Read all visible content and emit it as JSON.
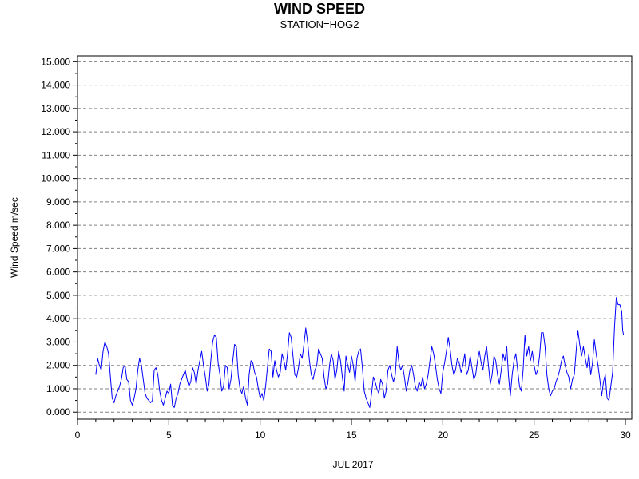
{
  "chart_data": {
    "type": "line",
    "title": "WIND SPEED",
    "subtitle": "STATION=HOG2",
    "xlabel": "JUL 2017",
    "ylabel": "Wind Speed m/sec",
    "xlim": [
      0,
      30.35
    ],
    "ylim": [
      -0.3,
      15.25
    ],
    "xticks": [
      0,
      5,
      10,
      15,
      20,
      25,
      30
    ],
    "yticks": [
      0,
      1,
      2,
      3,
      4,
      5,
      6,
      7,
      8,
      9,
      10,
      11,
      12,
      13,
      14,
      15
    ],
    "ytick_labels": [
      "0.000",
      "1.000",
      "2.000",
      "3.000",
      "4.000",
      "5.000",
      "6.000",
      "7.000",
      "8.000",
      "9.000",
      "10.000",
      "11.000",
      "12.000",
      "13.000",
      "14.000",
      "15.000"
    ],
    "grid": "horizontal dashed at each y tick",
    "line_color": "#0000ff",
    "series": [
      {
        "points": [
          [
            1.0,
            1.6
          ],
          [
            1.1,
            2.3
          ],
          [
            1.2,
            2.0
          ],
          [
            1.3,
            1.8
          ],
          [
            1.4,
            2.6
          ],
          [
            1.5,
            3.0
          ],
          [
            1.6,
            2.8
          ],
          [
            1.7,
            2.5
          ],
          [
            1.8,
            1.5
          ],
          [
            1.9,
            0.6
          ],
          [
            2.0,
            0.4
          ],
          [
            2.1,
            0.7
          ],
          [
            2.2,
            0.9
          ],
          [
            2.3,
            1.1
          ],
          [
            2.4,
            1.4
          ],
          [
            2.5,
            1.9
          ],
          [
            2.6,
            2.0
          ],
          [
            2.7,
            1.4
          ],
          [
            2.8,
            1.3
          ],
          [
            2.9,
            0.5
          ],
          [
            3.0,
            0.3
          ],
          [
            3.1,
            0.6
          ],
          [
            3.2,
            1.0
          ],
          [
            3.3,
            1.8
          ],
          [
            3.4,
            2.3
          ],
          [
            3.5,
            2.0
          ],
          [
            3.6,
            1.4
          ],
          [
            3.7,
            0.8
          ],
          [
            3.8,
            0.6
          ],
          [
            3.9,
            0.5
          ],
          [
            4.0,
            0.4
          ],
          [
            4.1,
            0.5
          ],
          [
            4.2,
            1.8
          ],
          [
            4.3,
            1.9
          ],
          [
            4.4,
            1.6
          ],
          [
            4.5,
            0.9
          ],
          [
            4.6,
            0.5
          ],
          [
            4.7,
            0.3
          ],
          [
            4.8,
            0.6
          ],
          [
            4.9,
            0.9
          ],
          [
            5.0,
            0.8
          ],
          [
            5.1,
            1.2
          ],
          [
            5.2,
            0.3
          ],
          [
            5.3,
            0.2
          ],
          [
            5.4,
            0.6
          ],
          [
            5.5,
            0.8
          ],
          [
            5.6,
            1.2
          ],
          [
            5.7,
            1.4
          ],
          [
            5.8,
            1.6
          ],
          [
            5.9,
            1.8
          ],
          [
            6.0,
            1.4
          ],
          [
            6.1,
            1.1
          ],
          [
            6.2,
            1.3
          ],
          [
            6.3,
            1.9
          ],
          [
            6.4,
            1.7
          ],
          [
            6.5,
            1.2
          ],
          [
            6.6,
            1.8
          ],
          [
            6.7,
            2.2
          ],
          [
            6.8,
            2.6
          ],
          [
            6.9,
            2.0
          ],
          [
            7.0,
            1.5
          ],
          [
            7.1,
            0.9
          ],
          [
            7.2,
            1.2
          ],
          [
            7.3,
            2.2
          ],
          [
            7.4,
            3.0
          ],
          [
            7.5,
            3.3
          ],
          [
            7.6,
            3.2
          ],
          [
            7.7,
            2.1
          ],
          [
            7.8,
            1.6
          ],
          [
            7.9,
            0.9
          ],
          [
            8.0,
            1.1
          ],
          [
            8.1,
            2.0
          ],
          [
            8.2,
            1.9
          ],
          [
            8.3,
            1.0
          ],
          [
            8.4,
            1.4
          ],
          [
            8.5,
            2.2
          ],
          [
            8.6,
            2.9
          ],
          [
            8.7,
            2.8
          ],
          [
            8.8,
            1.6
          ],
          [
            8.9,
            1.0
          ],
          [
            9.0,
            0.8
          ],
          [
            9.1,
            1.1
          ],
          [
            9.2,
            0.6
          ],
          [
            9.3,
            0.3
          ],
          [
            9.4,
            1.6
          ],
          [
            9.5,
            2.2
          ],
          [
            9.6,
            2.1
          ],
          [
            9.7,
            1.7
          ],
          [
            9.8,
            1.5
          ],
          [
            9.9,
            1.0
          ],
          [
            10.0,
            0.6
          ],
          [
            10.1,
            0.8
          ],
          [
            10.2,
            0.5
          ],
          [
            10.3,
            1.1
          ],
          [
            10.4,
            1.9
          ],
          [
            10.5,
            2.7
          ],
          [
            10.6,
            2.6
          ],
          [
            10.7,
            1.5
          ],
          [
            10.8,
            2.2
          ],
          [
            10.9,
            1.8
          ],
          [
            11.0,
            1.5
          ],
          [
            11.1,
            1.7
          ],
          [
            11.2,
            2.5
          ],
          [
            11.3,
            2.2
          ],
          [
            11.4,
            1.8
          ],
          [
            11.5,
            2.5
          ],
          [
            11.6,
            3.4
          ],
          [
            11.7,
            3.2
          ],
          [
            11.8,
            2.4
          ],
          [
            11.9,
            1.6
          ],
          [
            12.0,
            1.5
          ],
          [
            12.1,
            1.9
          ],
          [
            12.2,
            2.5
          ],
          [
            12.3,
            2.3
          ],
          [
            12.4,
            2.9
          ],
          [
            12.5,
            3.6
          ],
          [
            12.6,
            3.0
          ],
          [
            12.7,
            2.2
          ],
          [
            12.8,
            1.6
          ],
          [
            12.9,
            1.4
          ],
          [
            13.0,
            1.8
          ],
          [
            13.1,
            2.0
          ],
          [
            13.2,
            2.7
          ],
          [
            13.3,
            2.5
          ],
          [
            13.4,
            2.3
          ],
          [
            13.5,
            1.5
          ],
          [
            13.6,
            1.0
          ],
          [
            13.7,
            1.2
          ],
          [
            13.8,
            2.0
          ],
          [
            13.9,
            2.5
          ],
          [
            14.0,
            2.2
          ],
          [
            14.1,
            1.4
          ],
          [
            14.2,
            1.8
          ],
          [
            14.3,
            2.6
          ],
          [
            14.4,
            2.2
          ],
          [
            14.5,
            1.5
          ],
          [
            14.6,
            0.9
          ],
          [
            14.7,
            2.4
          ],
          [
            14.8,
            2.0
          ],
          [
            14.9,
            1.7
          ],
          [
            15.0,
            2.4
          ],
          [
            15.1,
            2.0
          ],
          [
            15.2,
            1.3
          ],
          [
            15.3,
            2.3
          ],
          [
            15.4,
            2.6
          ],
          [
            15.5,
            2.7
          ],
          [
            15.6,
            1.9
          ],
          [
            15.7,
            0.9
          ],
          [
            15.8,
            0.6
          ],
          [
            15.9,
            0.4
          ],
          [
            16.0,
            0.2
          ],
          [
            16.1,
            0.8
          ],
          [
            16.2,
            1.5
          ],
          [
            16.3,
            1.3
          ],
          [
            16.4,
            1.0
          ],
          [
            16.5,
            0.8
          ],
          [
            16.6,
            1.4
          ],
          [
            16.7,
            1.2
          ],
          [
            16.8,
            0.6
          ],
          [
            16.9,
            0.9
          ],
          [
            17.0,
            1.8
          ],
          [
            17.1,
            2.0
          ],
          [
            17.2,
            1.6
          ],
          [
            17.3,
            1.3
          ],
          [
            17.4,
            1.6
          ],
          [
            17.5,
            2.8
          ],
          [
            17.6,
            2.1
          ],
          [
            17.7,
            1.8
          ],
          [
            17.8,
            2.0
          ],
          [
            17.9,
            1.5
          ],
          [
            18.0,
            0.9
          ],
          [
            18.1,
            1.3
          ],
          [
            18.2,
            1.8
          ],
          [
            18.3,
            2.0
          ],
          [
            18.4,
            1.6
          ],
          [
            18.5,
            1.1
          ],
          [
            18.6,
            0.9
          ],
          [
            18.7,
            1.3
          ],
          [
            18.8,
            1.1
          ],
          [
            18.9,
            1.5
          ],
          [
            19.0,
            1.0
          ],
          [
            19.1,
            1.2
          ],
          [
            19.2,
            1.6
          ],
          [
            19.3,
            2.2
          ],
          [
            19.4,
            2.8
          ],
          [
            19.5,
            2.5
          ],
          [
            19.6,
            2.0
          ],
          [
            19.7,
            1.4
          ],
          [
            19.8,
            1.0
          ],
          [
            19.9,
            0.8
          ],
          [
            20.0,
            1.7
          ],
          [
            20.1,
            2.1
          ],
          [
            20.2,
            2.6
          ],
          [
            20.3,
            3.2
          ],
          [
            20.4,
            2.7
          ],
          [
            20.5,
            2.0
          ],
          [
            20.6,
            1.6
          ],
          [
            20.7,
            1.8
          ],
          [
            20.8,
            2.3
          ],
          [
            20.9,
            2.1
          ],
          [
            21.0,
            1.7
          ],
          [
            21.1,
            2.0
          ],
          [
            21.2,
            2.5
          ],
          [
            21.3,
            1.6
          ],
          [
            21.4,
            1.8
          ],
          [
            21.5,
            2.4
          ],
          [
            21.6,
            1.9
          ],
          [
            21.7,
            1.4
          ],
          [
            21.8,
            1.6
          ],
          [
            21.9,
            2.2
          ],
          [
            22.0,
            2.6
          ],
          [
            22.1,
            2.1
          ],
          [
            22.2,
            1.8
          ],
          [
            22.3,
            2.4
          ],
          [
            22.4,
            2.8
          ],
          [
            22.5,
            2.0
          ],
          [
            22.6,
            1.2
          ],
          [
            22.7,
            1.6
          ],
          [
            22.8,
            2.4
          ],
          [
            22.9,
            2.2
          ],
          [
            23.0,
            1.6
          ],
          [
            23.1,
            1.2
          ],
          [
            23.2,
            1.8
          ],
          [
            23.3,
            2.5
          ],
          [
            23.4,
            2.2
          ],
          [
            23.5,
            2.8
          ],
          [
            23.6,
            1.5
          ],
          [
            23.7,
            0.7
          ],
          [
            23.8,
            1.6
          ],
          [
            23.9,
            2.2
          ],
          [
            24.0,
            2.5
          ],
          [
            24.1,
            1.8
          ],
          [
            24.2,
            1.1
          ],
          [
            24.3,
            0.9
          ],
          [
            24.4,
            1.8
          ],
          [
            24.5,
            3.3
          ],
          [
            24.6,
            2.4
          ],
          [
            24.7,
            2.8
          ],
          [
            24.8,
            2.2
          ],
          [
            24.9,
            2.6
          ],
          [
            25.0,
            2.0
          ],
          [
            25.1,
            1.6
          ],
          [
            25.2,
            1.8
          ],
          [
            25.3,
            2.4
          ],
          [
            25.4,
            3.4
          ],
          [
            25.5,
            3.4
          ],
          [
            25.6,
            2.8
          ],
          [
            25.7,
            1.6
          ],
          [
            25.8,
            1.0
          ],
          [
            25.9,
            0.7
          ],
          [
            26.0,
            0.9
          ],
          [
            26.1,
            1.0
          ],
          [
            26.2,
            1.3
          ],
          [
            26.3,
            1.5
          ],
          [
            26.4,
            1.8
          ],
          [
            26.5,
            2.2
          ],
          [
            26.6,
            2.4
          ],
          [
            26.7,
            2.0
          ],
          [
            26.8,
            1.7
          ],
          [
            26.9,
            1.5
          ],
          [
            27.0,
            1.0
          ],
          [
            27.1,
            1.4
          ],
          [
            27.2,
            1.6
          ],
          [
            27.3,
            2.6
          ],
          [
            27.4,
            3.5
          ],
          [
            27.5,
            2.9
          ],
          [
            27.6,
            2.4
          ],
          [
            27.7,
            2.8
          ],
          [
            27.8,
            2.3
          ],
          [
            27.9,
            1.9
          ],
          [
            28.0,
            2.5
          ],
          [
            28.1,
            1.6
          ],
          [
            28.2,
            2.1
          ],
          [
            28.3,
            3.1
          ],
          [
            28.4,
            2.5
          ],
          [
            28.5,
            2.0
          ],
          [
            28.6,
            1.4
          ],
          [
            28.7,
            0.7
          ],
          [
            28.8,
            1.3
          ],
          [
            28.9,
            1.6
          ],
          [
            29.0,
            0.6
          ],
          [
            29.1,
            0.5
          ],
          [
            29.2,
            1.1
          ],
          [
            29.3,
            1.7
          ],
          [
            29.4,
            3.6
          ],
          [
            29.5,
            4.9
          ],
          [
            29.6,
            4.6
          ],
          [
            29.7,
            4.6
          ],
          [
            29.8,
            4.3
          ],
          [
            29.85,
            3.5
          ],
          [
            29.9,
            3.3
          ]
        ]
      }
    ]
  }
}
